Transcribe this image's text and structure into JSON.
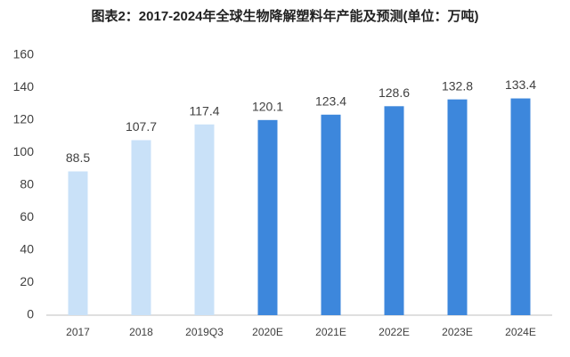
{
  "chart_data": {
    "type": "bar",
    "title": "图表2：2017-2024年全球生物降解塑料年产能及预测(单位：万吨)",
    "categories": [
      "2017",
      "2018",
      "2019Q3",
      "2020E",
      "2021E",
      "2022E",
      "2023E",
      "2024E"
    ],
    "values": [
      88.5,
      107.7,
      117.4,
      120.1,
      123.4,
      128.6,
      132.8,
      133.4
    ],
    "colors": [
      "#c9e1f8",
      "#c9e1f8",
      "#c9e1f8",
      "#3d87dc",
      "#3d87dc",
      "#3d87dc",
      "#3d87dc",
      "#3d87dc"
    ],
    "ylim": [
      0,
      160
    ],
    "yticks": [
      0,
      20,
      40,
      60,
      80,
      100,
      120,
      140,
      160
    ],
    "grid": false
  }
}
